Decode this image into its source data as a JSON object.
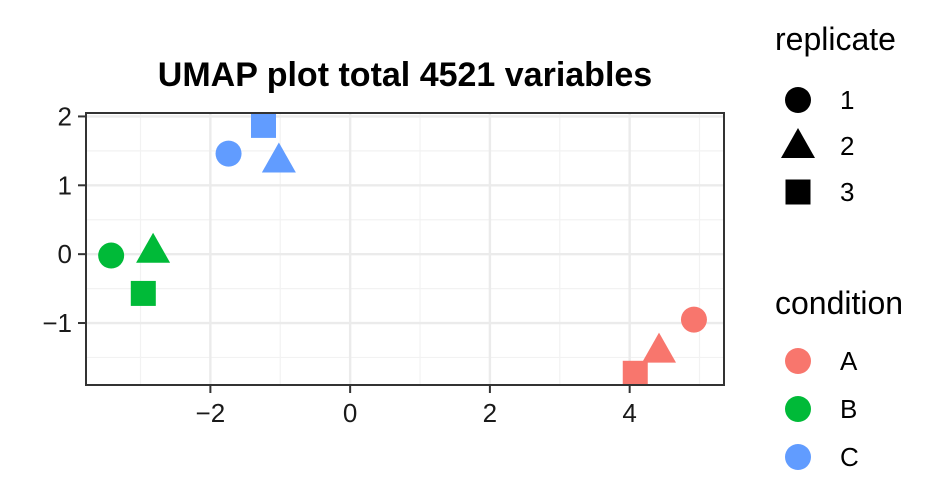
{
  "chart_data": {
    "type": "scatter",
    "title": "UMAP plot total 4521 variables",
    "xlabel": "",
    "ylabel": "",
    "xlim": [
      -3.78,
      5.35
    ],
    "ylim": [
      -1.9,
      2.05
    ],
    "x_ticks": [
      -2,
      0,
      2,
      4
    ],
    "y_ticks": [
      2,
      1,
      0,
      -1
    ],
    "x_tick_labels": [
      "−2",
      "0",
      "2",
      "4"
    ],
    "y_tick_labels": [
      "2",
      "1",
      "0",
      "−1"
    ],
    "grid": true,
    "legend_position": "right",
    "colors": {
      "A": "#F8766D",
      "B": "#00BA38",
      "C": "#619CFF"
    },
    "points": [
      {
        "x": 4.92,
        "y": -0.95,
        "condition": "A",
        "replicate": "1"
      },
      {
        "x": 4.42,
        "y": -1.4,
        "condition": "A",
        "replicate": "2"
      },
      {
        "x": 4.08,
        "y": -1.73,
        "condition": "A",
        "replicate": "3"
      },
      {
        "x": -3.42,
        "y": -0.02,
        "condition": "B",
        "replicate": "1"
      },
      {
        "x": -2.82,
        "y": 0.05,
        "condition": "B",
        "replicate": "2"
      },
      {
        "x": -2.96,
        "y": -0.57,
        "condition": "B",
        "replicate": "3"
      },
      {
        "x": -1.74,
        "y": 1.46,
        "condition": "C",
        "replicate": "1"
      },
      {
        "x": -1.02,
        "y": 1.36,
        "condition": "C",
        "replicate": "2"
      },
      {
        "x": -1.24,
        "y": 1.87,
        "condition": "C",
        "replicate": "3"
      }
    ],
    "legends": [
      {
        "title": "replicate",
        "items": [
          {
            "label": "1",
            "shape": "circle"
          },
          {
            "label": "2",
            "shape": "triangle"
          },
          {
            "label": "3",
            "shape": "square"
          }
        ]
      },
      {
        "title": "condition",
        "items": [
          {
            "label": "A",
            "color": "#F8766D"
          },
          {
            "label": "B",
            "color": "#00BA38"
          },
          {
            "label": "C",
            "color": "#619CFF"
          }
        ]
      }
    ]
  }
}
